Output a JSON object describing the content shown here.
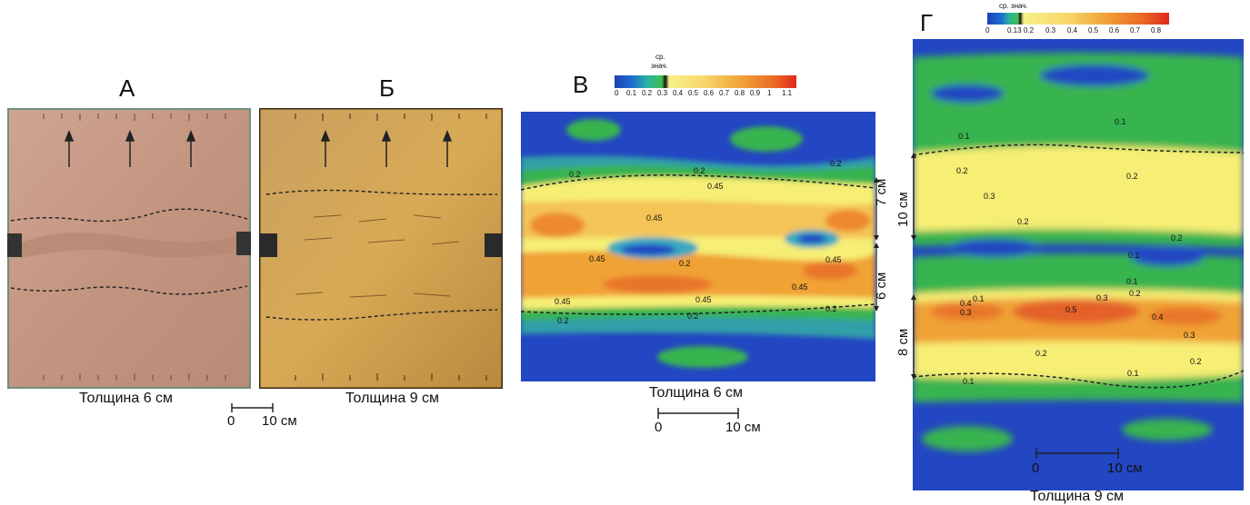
{
  "figure": {
    "panels": {
      "a": {
        "letter": "А",
        "caption": "Толщина 6 см"
      },
      "b": {
        "letter": "Б",
        "caption": "Толщина 9 см"
      },
      "v": {
        "letter": "В",
        "caption": "Толщина 6 см"
      },
      "g": {
        "letter": "Г",
        "caption": "Толщина 9 см"
      }
    },
    "scale_ab": {
      "zero": "0",
      "ten": "10 см"
    },
    "scale_v": {
      "zero": "0",
      "ten": "10 см"
    },
    "scale_g": {
      "zero": "0",
      "ten": "10 см"
    },
    "legend_v": {
      "title_line1": "ср.",
      "title_line2": "знач.",
      "ticks": [
        "0",
        "0.1",
        "0.2",
        "0.3",
        "0.4",
        "0.5",
        "0.6",
        "0.7",
        "0.8",
        "0.9",
        "1",
        "1.1"
      ]
    },
    "legend_g": {
      "title": "ср. знач.",
      "ticks": [
        "0",
        "0.13",
        "0.2",
        "0.3",
        "0.4",
        "0.5",
        "0.6",
        "0.7",
        "0.8"
      ]
    },
    "zones_v": {
      "upper": "7 см",
      "lower": "6 см"
    },
    "zones_g": {
      "upper": "10 см",
      "lower": "8 см"
    },
    "contour_labels_v": [
      "0.2",
      "0.2",
      "0.45",
      "0.2",
      "0.45",
      "0.45",
      "0.2",
      "0.45",
      "0.45",
      "0.45",
      "0.45",
      "0.2",
      "0.2",
      "0.2"
    ],
    "contour_labels_g": [
      "0.1",
      "0.1",
      "0.2",
      "0.2",
      "0.3",
      "0.2",
      "0.2",
      "0.1",
      "0.1",
      "0.2",
      "0.3",
      "0.4",
      "0.3",
      "0.1",
      "0.5",
      "0.4",
      "0.3",
      "0.2",
      "0.2",
      "0.1",
      "0.1"
    ]
  },
  "colors": {
    "blue": "#1f4fc0",
    "green": "#2fb35a",
    "yellow": "#f7ef7a",
    "orange": "#f0a236",
    "red": "#e23a1e",
    "photo_a": "#c99b86",
    "photo_b": "#d6a650"
  }
}
